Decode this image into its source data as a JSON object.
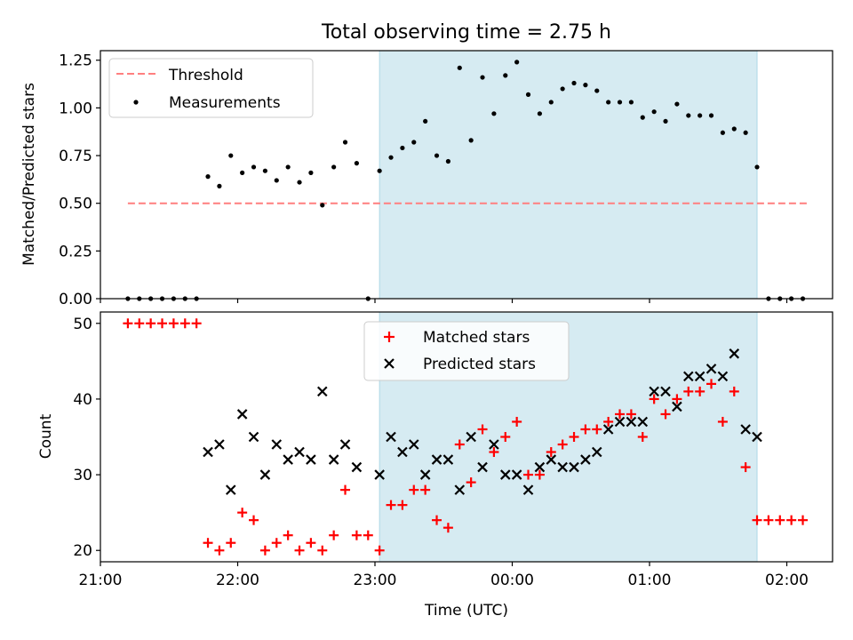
{
  "chart_data": [
    {
      "type": "scatter",
      "title": "Total observing time = 2.75 h",
      "ylabel": "Matched/Predicted stars",
      "xlabel": "",
      "xlim": [
        "21:00",
        "02:20"
      ],
      "ylim": [
        0,
        1.3
      ],
      "x_ticks": [
        "21:00",
        "22:00",
        "23:00",
        "00:00",
        "01:00",
        "02:00"
      ],
      "y_ticks": [
        "0.00",
        "0.25",
        "0.50",
        "0.75",
        "1.00",
        "1.25"
      ],
      "shaded_span": [
        "23:02",
        "01:47"
      ],
      "shade_color": "#add8e6",
      "legend_position": "upper-left",
      "threshold": {
        "name": "Threshold",
        "y": 0.5,
        "x_range": [
          "21:12",
          "02:10"
        ],
        "color": "#ff7f7f"
      },
      "series": [
        {
          "name": "Measurements",
          "color": "#000000",
          "points": [
            [
              "21:12",
              0
            ],
            [
              "21:17",
              0
            ],
            [
              "21:22",
              0
            ],
            [
              "21:27",
              0
            ],
            [
              "21:32",
              0
            ],
            [
              "21:37",
              0
            ],
            [
              "21:42",
              0
            ],
            [
              "21:47",
              0.64
            ],
            [
              "21:52",
              0.59
            ],
            [
              "21:57",
              0.75
            ],
            [
              "22:02",
              0.66
            ],
            [
              "22:07",
              0.69
            ],
            [
              "22:12",
              0.67
            ],
            [
              "22:17",
              0.62
            ],
            [
              "22:22",
              0.69
            ],
            [
              "22:27",
              0.61
            ],
            [
              "22:32",
              0.66
            ],
            [
              "22:37",
              0.49
            ],
            [
              "22:42",
              0.69
            ],
            [
              "22:47",
              0.82
            ],
            [
              "22:52",
              0.71
            ],
            [
              "22:57",
              0
            ],
            [
              "23:02",
              0.67
            ],
            [
              "23:07",
              0.74
            ],
            [
              "23:12",
              0.79
            ],
            [
              "23:17",
              0.82
            ],
            [
              "23:22",
              0.93
            ],
            [
              "23:27",
              0.75
            ],
            [
              "23:32",
              0.72
            ],
            [
              "23:37",
              1.21
            ],
            [
              "23:42",
              0.83
            ],
            [
              "23:47",
              1.16
            ],
            [
              "23:52",
              0.97
            ],
            [
              "23:57",
              1.17
            ],
            [
              "00:02",
              1.24
            ],
            [
              "00:07",
              1.07
            ],
            [
              "00:12",
              0.97
            ],
            [
              "00:17",
              1.03
            ],
            [
              "00:22",
              1.1
            ],
            [
              "00:27",
              1.13
            ],
            [
              "00:32",
              1.12
            ],
            [
              "00:37",
              1.09
            ],
            [
              "00:42",
              1.03
            ],
            [
              "00:47",
              1.03
            ],
            [
              "00:52",
              1.03
            ],
            [
              "00:57",
              0.95
            ],
            [
              "01:02",
              0.98
            ],
            [
              "01:07",
              0.93
            ],
            [
              "01:12",
              1.02
            ],
            [
              "01:17",
              0.96
            ],
            [
              "01:22",
              0.96
            ],
            [
              "01:27",
              0.96
            ],
            [
              "01:32",
              0.87
            ],
            [
              "01:37",
              0.89
            ],
            [
              "01:42",
              0.87
            ],
            [
              "01:47",
              0.69
            ],
            [
              "01:52",
              0
            ],
            [
              "01:57",
              0
            ],
            [
              "02:02",
              0
            ],
            [
              "02:07",
              0
            ]
          ]
        }
      ]
    },
    {
      "type": "scatter",
      "title": "",
      "ylabel": "Count",
      "xlabel": "Time (UTC)",
      "xlim": [
        "21:00",
        "02:20"
      ],
      "ylim": [
        18.5,
        51.5
      ],
      "x_ticks": [
        "21:00",
        "22:00",
        "23:00",
        "00:00",
        "01:00",
        "02:00"
      ],
      "y_ticks": [
        "20",
        "30",
        "40",
        "50"
      ],
      "shaded_span": [
        "23:02",
        "01:47"
      ],
      "shade_color": "#add8e6",
      "legend_position": "upper-center",
      "series": [
        {
          "name": "Matched stars",
          "marker": "plus",
          "color": "#ff0000",
          "points": [
            [
              "21:12",
              50
            ],
            [
              "21:17",
              50
            ],
            [
              "21:22",
              50
            ],
            [
              "21:27",
              50
            ],
            [
              "21:32",
              50
            ],
            [
              "21:37",
              50
            ],
            [
              "21:42",
              50
            ],
            [
              "21:47",
              21
            ],
            [
              "21:52",
              20
            ],
            [
              "21:57",
              21
            ],
            [
              "22:02",
              25
            ],
            [
              "22:07",
              24
            ],
            [
              "22:12",
              20
            ],
            [
              "22:17",
              21
            ],
            [
              "22:22",
              22
            ],
            [
              "22:27",
              20
            ],
            [
              "22:32",
              21
            ],
            [
              "22:37",
              20
            ],
            [
              "22:42",
              22
            ],
            [
              "22:47",
              28
            ],
            [
              "22:52",
              22
            ],
            [
              "22:57",
              22
            ],
            [
              "23:02",
              20
            ],
            [
              "23:07",
              26
            ],
            [
              "23:12",
              26
            ],
            [
              "23:17",
              28
            ],
            [
              "23:22",
              28
            ],
            [
              "23:27",
              24
            ],
            [
              "23:32",
              23
            ],
            [
              "23:37",
              34
            ],
            [
              "23:42",
              29
            ],
            [
              "23:47",
              36
            ],
            [
              "23:52",
              33
            ],
            [
              "23:57",
              35
            ],
            [
              "00:02",
              37
            ],
            [
              "00:07",
              30
            ],
            [
              "00:12",
              30
            ],
            [
              "00:17",
              33
            ],
            [
              "00:22",
              34
            ],
            [
              "00:27",
              35
            ],
            [
              "00:32",
              36
            ],
            [
              "00:37",
              36
            ],
            [
              "00:42",
              37
            ],
            [
              "00:47",
              38
            ],
            [
              "00:52",
              38
            ],
            [
              "00:57",
              35
            ],
            [
              "01:02",
              40
            ],
            [
              "01:07",
              38
            ],
            [
              "01:12",
              40
            ],
            [
              "01:17",
              41
            ],
            [
              "01:22",
              41
            ],
            [
              "01:27",
              42
            ],
            [
              "01:32",
              37
            ],
            [
              "01:37",
              41
            ],
            [
              "01:42",
              31
            ],
            [
              "01:47",
              24
            ],
            [
              "01:52",
              24
            ],
            [
              "01:57",
              24
            ],
            [
              "02:02",
              24
            ],
            [
              "02:07",
              24
            ]
          ]
        },
        {
          "name": "Predicted stars",
          "marker": "x",
          "color": "#000000",
          "points": [
            [
              "21:47",
              33
            ],
            [
              "21:52",
              34
            ],
            [
              "21:57",
              28
            ],
            [
              "22:02",
              38
            ],
            [
              "22:07",
              35
            ],
            [
              "22:12",
              30
            ],
            [
              "22:17",
              34
            ],
            [
              "22:22",
              32
            ],
            [
              "22:27",
              33
            ],
            [
              "22:32",
              32
            ],
            [
              "22:37",
              41
            ],
            [
              "22:42",
              32
            ],
            [
              "22:47",
              34
            ],
            [
              "22:52",
              31
            ],
            [
              "23:02",
              30
            ],
            [
              "23:07",
              35
            ],
            [
              "23:12",
              33
            ],
            [
              "23:17",
              34
            ],
            [
              "23:22",
              30
            ],
            [
              "23:27",
              32
            ],
            [
              "23:32",
              32
            ],
            [
              "23:37",
              28
            ],
            [
              "23:42",
              35
            ],
            [
              "23:47",
              31
            ],
            [
              "23:52",
              34
            ],
            [
              "23:57",
              30
            ],
            [
              "00:02",
              30
            ],
            [
              "00:07",
              28
            ],
            [
              "00:12",
              31
            ],
            [
              "00:17",
              32
            ],
            [
              "00:22",
              31
            ],
            [
              "00:27",
              31
            ],
            [
              "00:32",
              32
            ],
            [
              "00:37",
              33
            ],
            [
              "00:42",
              36
            ],
            [
              "00:47",
              37
            ],
            [
              "00:52",
              37
            ],
            [
              "00:57",
              37
            ],
            [
              "01:02",
              41
            ],
            [
              "01:07",
              41
            ],
            [
              "01:12",
              39
            ],
            [
              "01:17",
              43
            ],
            [
              "01:22",
              43
            ],
            [
              "01:27",
              44
            ],
            [
              "01:32",
              43
            ],
            [
              "01:37",
              46
            ],
            [
              "01:42",
              36
            ],
            [
              "01:47",
              35
            ]
          ]
        }
      ]
    }
  ]
}
